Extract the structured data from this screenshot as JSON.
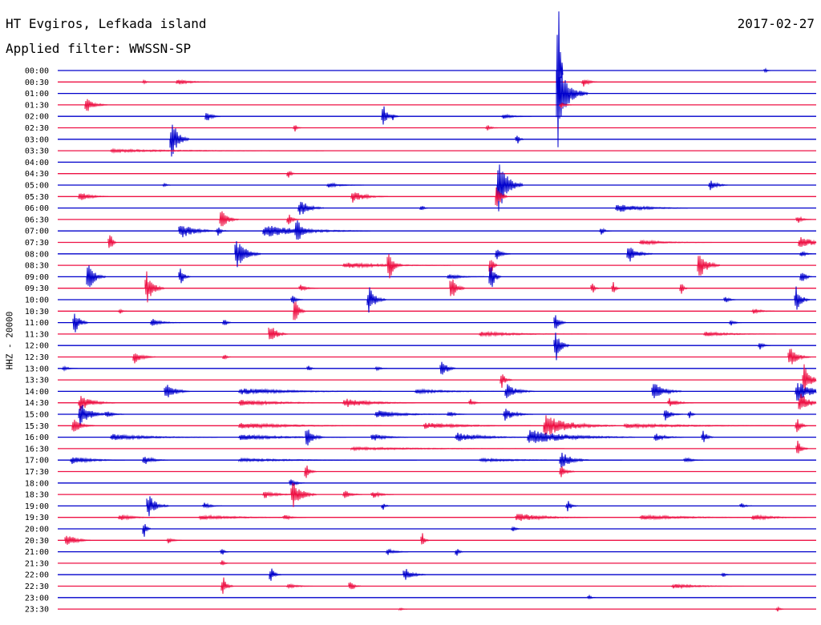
{
  "header": {
    "station": "HT Evgiros, Lefkada island",
    "date": "2017-02-27",
    "filter": "Applied filter: WWSSN-SP"
  },
  "colors": {
    "trace_a": "#0000cc",
    "trace_b": "#ee1144"
  },
  "chart_data": {
    "type": "line",
    "title": "HT Evgiros, Lefkada island",
    "ylabel": "HHZ - 20000",
    "row_labels": [
      "00:00",
      "00:30",
      "01:00",
      "01:30",
      "02:00",
      "02:30",
      "03:00",
      "03:30",
      "04:00",
      "04:30",
      "05:00",
      "05:30",
      "06:00",
      "06:30",
      "07:00",
      "07:30",
      "08:00",
      "08:30",
      "09:00",
      "09:30",
      "10:00",
      "10:30",
      "11:00",
      "11:30",
      "12:00",
      "12:30",
      "13:00",
      "13:30",
      "14:00",
      "14:30",
      "15:00",
      "15:30",
      "16:00",
      "16:30",
      "17:00",
      "17:30",
      "18:00",
      "18:30",
      "19:00",
      "19:30",
      "20:00",
      "20:30",
      "21:00",
      "21:30",
      "22:00",
      "22:30",
      "23:00",
      "23:30"
    ],
    "color_cycle": [
      "#0000cc",
      "#ee1144"
    ],
    "events": [
      {
        "row": 0,
        "x": 696,
        "amp": 120,
        "w": 3
      },
      {
        "row": 0,
        "x": 955,
        "amp": 3,
        "w": 3
      },
      {
        "row": 1,
        "x": 222,
        "amp": 4,
        "w": 18
      },
      {
        "row": 1,
        "x": 728,
        "amp": 7,
        "w": 8
      },
      {
        "row": 1,
        "x": 180,
        "amp": 3,
        "w": 3
      },
      {
        "row": 2,
        "x": 698,
        "amp": 38,
        "w": 16
      },
      {
        "row": 3,
        "x": 108,
        "amp": 10,
        "w": 12
      },
      {
        "row": 3,
        "x": 700,
        "amp": 5,
        "w": 6
      },
      {
        "row": 4,
        "x": 478,
        "amp": 16,
        "w": 6
      },
      {
        "row": 4,
        "x": 258,
        "amp": 8,
        "w": 8
      },
      {
        "row": 4,
        "x": 490,
        "amp": 5,
        "w": 4
      },
      {
        "row": 4,
        "x": 628,
        "amp": 3,
        "w": 16
      },
      {
        "row": 5,
        "x": 368,
        "amp": 5,
        "w": 4
      },
      {
        "row": 5,
        "x": 608,
        "amp": 4,
        "w": 6
      },
      {
        "row": 6,
        "x": 214,
        "amp": 28,
        "w": 10
      },
      {
        "row": 6,
        "x": 645,
        "amp": 8,
        "w": 4
      },
      {
        "row": 7,
        "x": 140,
        "amp": 2,
        "w": 120
      },
      {
        "row": 9,
        "x": 360,
        "amp": 6,
        "w": 4
      },
      {
        "row": 10,
        "x": 622,
        "amp": 35,
        "w": 14
      },
      {
        "row": 10,
        "x": 886,
        "amp": 8,
        "w": 10
      },
      {
        "row": 10,
        "x": 410,
        "amp": 3,
        "w": 20
      },
      {
        "row": 10,
        "x": 205,
        "amp": 3,
        "w": 4
      },
      {
        "row": 11,
        "x": 100,
        "amp": 7,
        "w": 16
      },
      {
        "row": 11,
        "x": 440,
        "amp": 8,
        "w": 20
      },
      {
        "row": 11,
        "x": 620,
        "amp": 20,
        "w": 6
      },
      {
        "row": 12,
        "x": 374,
        "amp": 12,
        "w": 14
      },
      {
        "row": 12,
        "x": 526,
        "amp": 4,
        "w": 4
      },
      {
        "row": 12,
        "x": 770,
        "amp": 6,
        "w": 40
      },
      {
        "row": 13,
        "x": 276,
        "amp": 15,
        "w": 10
      },
      {
        "row": 13,
        "x": 360,
        "amp": 8,
        "w": 6
      },
      {
        "row": 13,
        "x": 995,
        "amp": 5,
        "w": 8
      },
      {
        "row": 14,
        "x": 225,
        "amp": 10,
        "w": 24
      },
      {
        "row": 14,
        "x": 330,
        "amp": 8,
        "w": 60
      },
      {
        "row": 14,
        "x": 370,
        "amp": 18,
        "w": 10
      },
      {
        "row": 14,
        "x": 272,
        "amp": 6,
        "w": 6
      },
      {
        "row": 14,
        "x": 750,
        "amp": 5,
        "w": 6
      },
      {
        "row": 15,
        "x": 137,
        "amp": 16,
        "w": 4
      },
      {
        "row": 15,
        "x": 998,
        "amp": 10,
        "w": 18
      },
      {
        "row": 15,
        "x": 800,
        "amp": 3,
        "w": 40
      },
      {
        "row": 16,
        "x": 295,
        "amp": 22,
        "w": 14
      },
      {
        "row": 16,
        "x": 784,
        "amp": 12,
        "w": 14
      },
      {
        "row": 16,
        "x": 620,
        "amp": 8,
        "w": 8
      },
      {
        "row": 16,
        "x": 1000,
        "amp": 6,
        "w": 6
      },
      {
        "row": 17,
        "x": 485,
        "amp": 22,
        "w": 8
      },
      {
        "row": 17,
        "x": 872,
        "amp": 20,
        "w": 12
      },
      {
        "row": 17,
        "x": 430,
        "amp": 4,
        "w": 60
      },
      {
        "row": 17,
        "x": 612,
        "amp": 20,
        "w": 4
      },
      {
        "row": 18,
        "x": 110,
        "amp": 20,
        "w": 10
      },
      {
        "row": 18,
        "x": 225,
        "amp": 12,
        "w": 6
      },
      {
        "row": 18,
        "x": 612,
        "amp": 22,
        "w": 6
      },
      {
        "row": 18,
        "x": 1000,
        "amp": 10,
        "w": 6
      },
      {
        "row": 18,
        "x": 560,
        "amp": 4,
        "w": 20
      },
      {
        "row": 19,
        "x": 183,
        "amp": 22,
        "w": 10
      },
      {
        "row": 19,
        "x": 563,
        "amp": 18,
        "w": 8
      },
      {
        "row": 19,
        "x": 739,
        "amp": 8,
        "w": 4
      },
      {
        "row": 19,
        "x": 765,
        "amp": 8,
        "w": 4
      },
      {
        "row": 19,
        "x": 850,
        "amp": 8,
        "w": 4
      },
      {
        "row": 19,
        "x": 375,
        "amp": 5,
        "w": 10
      },
      {
        "row": 20,
        "x": 460,
        "amp": 18,
        "w": 10
      },
      {
        "row": 20,
        "x": 993,
        "amp": 18,
        "w": 8
      },
      {
        "row": 20,
        "x": 905,
        "amp": 5,
        "w": 6
      },
      {
        "row": 20,
        "x": 365,
        "amp": 6,
        "w": 6
      },
      {
        "row": 21,
        "x": 368,
        "amp": 20,
        "w": 6
      },
      {
        "row": 21,
        "x": 150,
        "amp": 4,
        "w": 4
      },
      {
        "row": 21,
        "x": 940,
        "amp": 4,
        "w": 12
      },
      {
        "row": 22,
        "x": 93,
        "amp": 16,
        "w": 8
      },
      {
        "row": 22,
        "x": 190,
        "amp": 5,
        "w": 16
      },
      {
        "row": 22,
        "x": 693,
        "amp": 12,
        "w": 6
      },
      {
        "row": 22,
        "x": 280,
        "amp": 6,
        "w": 4
      },
      {
        "row": 22,
        "x": 912,
        "amp": 4,
        "w": 6
      },
      {
        "row": 23,
        "x": 337,
        "amp": 14,
        "w": 10
      },
      {
        "row": 23,
        "x": 600,
        "amp": 3,
        "w": 60
      },
      {
        "row": 23,
        "x": 880,
        "amp": 3,
        "w": 40
      },
      {
        "row": 24,
        "x": 693,
        "amp": 22,
        "w": 8
      },
      {
        "row": 24,
        "x": 948,
        "amp": 5,
        "w": 6
      },
      {
        "row": 25,
        "x": 168,
        "amp": 8,
        "w": 12
      },
      {
        "row": 25,
        "x": 985,
        "amp": 14,
        "w": 12
      },
      {
        "row": 25,
        "x": 280,
        "amp": 4,
        "w": 4
      },
      {
        "row": 26,
        "x": 551,
        "amp": 14,
        "w": 8
      },
      {
        "row": 26,
        "x": 80,
        "amp": 3,
        "w": 8
      },
      {
        "row": 26,
        "x": 385,
        "amp": 4,
        "w": 4
      },
      {
        "row": 26,
        "x": 470,
        "amp": 3,
        "w": 6
      },
      {
        "row": 27,
        "x": 626,
        "amp": 10,
        "w": 6
      },
      {
        "row": 27,
        "x": 1003,
        "amp": 20,
        "w": 10
      },
      {
        "row": 28,
        "x": 207,
        "amp": 12,
        "w": 14
      },
      {
        "row": 28,
        "x": 632,
        "amp": 10,
        "w": 16
      },
      {
        "row": 28,
        "x": 815,
        "amp": 14,
        "w": 16
      },
      {
        "row": 28,
        "x": 994,
        "amp": 14,
        "w": 22
      },
      {
        "row": 28,
        "x": 300,
        "amp": 4,
        "w": 80
      },
      {
        "row": 28,
        "x": 520,
        "amp": 3,
        "w": 50
      },
      {
        "row": 29,
        "x": 100,
        "amp": 10,
        "w": 20
      },
      {
        "row": 29,
        "x": 430,
        "amp": 6,
        "w": 40
      },
      {
        "row": 29,
        "x": 998,
        "amp": 14,
        "w": 14
      },
      {
        "row": 29,
        "x": 835,
        "amp": 6,
        "w": 14
      },
      {
        "row": 29,
        "x": 300,
        "amp": 4,
        "w": 60
      },
      {
        "row": 29,
        "x": 587,
        "amp": 5,
        "w": 6
      },
      {
        "row": 30,
        "x": 100,
        "amp": 16,
        "w": 16
      },
      {
        "row": 30,
        "x": 630,
        "amp": 8,
        "w": 16
      },
      {
        "row": 30,
        "x": 470,
        "amp": 5,
        "w": 40
      },
      {
        "row": 30,
        "x": 830,
        "amp": 8,
        "w": 10
      },
      {
        "row": 30,
        "x": 133,
        "amp": 5,
        "w": 10
      },
      {
        "row": 30,
        "x": 860,
        "amp": 6,
        "w": 4
      },
      {
        "row": 30,
        "x": 560,
        "amp": 4,
        "w": 10
      },
      {
        "row": 31,
        "x": 92,
        "amp": 10,
        "w": 12
      },
      {
        "row": 31,
        "x": 680,
        "amp": 14,
        "w": 40
      },
      {
        "row": 31,
        "x": 300,
        "amp": 4,
        "w": 80
      },
      {
        "row": 31,
        "x": 530,
        "amp": 4,
        "w": 60
      },
      {
        "row": 31,
        "x": 994,
        "amp": 12,
        "w": 6
      },
      {
        "row": 31,
        "x": 780,
        "amp": 3,
        "w": 100
      },
      {
        "row": 32,
        "x": 383,
        "amp": 16,
        "w": 10
      },
      {
        "row": 32,
        "x": 660,
        "amp": 10,
        "w": 60
      },
      {
        "row": 32,
        "x": 570,
        "amp": 6,
        "w": 40
      },
      {
        "row": 32,
        "x": 877,
        "amp": 10,
        "w": 6
      },
      {
        "row": 32,
        "x": 140,
        "amp": 4,
        "w": 60
      },
      {
        "row": 32,
        "x": 300,
        "amp": 4,
        "w": 60
      },
      {
        "row": 32,
        "x": 465,
        "amp": 5,
        "w": 20
      },
      {
        "row": 32,
        "x": 818,
        "amp": 5,
        "w": 16
      },
      {
        "row": 33,
        "x": 995,
        "amp": 12,
        "w": 6
      },
      {
        "row": 33,
        "x": 440,
        "amp": 2,
        "w": 120
      },
      {
        "row": 34,
        "x": 700,
        "amp": 12,
        "w": 16
      },
      {
        "row": 34,
        "x": 90,
        "amp": 5,
        "w": 30
      },
      {
        "row": 34,
        "x": 180,
        "amp": 6,
        "w": 14
      },
      {
        "row": 34,
        "x": 855,
        "amp": 4,
        "w": 10
      },
      {
        "row": 34,
        "x": 300,
        "amp": 2,
        "w": 100
      },
      {
        "row": 34,
        "x": 600,
        "amp": 2,
        "w": 80
      },
      {
        "row": 35,
        "x": 382,
        "amp": 10,
        "w": 6
      },
      {
        "row": 35,
        "x": 700,
        "amp": 8,
        "w": 8
      },
      {
        "row": 36,
        "x": 363,
        "amp": 6,
        "w": 8
      },
      {
        "row": 37,
        "x": 365,
        "amp": 18,
        "w": 14
      },
      {
        "row": 37,
        "x": 430,
        "amp": 6,
        "w": 10
      },
      {
        "row": 37,
        "x": 465,
        "amp": 5,
        "w": 12
      },
      {
        "row": 37,
        "x": 330,
        "amp": 5,
        "w": 20
      },
      {
        "row": 38,
        "x": 185,
        "amp": 16,
        "w": 12
      },
      {
        "row": 38,
        "x": 708,
        "amp": 8,
        "w": 6
      },
      {
        "row": 38,
        "x": 478,
        "amp": 5,
        "w": 4
      },
      {
        "row": 38,
        "x": 255,
        "amp": 4,
        "w": 10
      },
      {
        "row": 38,
        "x": 925,
        "amp": 4,
        "w": 6
      },
      {
        "row": 39,
        "x": 645,
        "amp": 6,
        "w": 40
      },
      {
        "row": 39,
        "x": 150,
        "amp": 4,
        "w": 20
      },
      {
        "row": 39,
        "x": 355,
        "amp": 4,
        "w": 10
      },
      {
        "row": 39,
        "x": 940,
        "amp": 4,
        "w": 30
      },
      {
        "row": 39,
        "x": 250,
        "amp": 3,
        "w": 60
      },
      {
        "row": 39,
        "x": 800,
        "amp": 3,
        "w": 80
      },
      {
        "row": 40,
        "x": 640,
        "amp": 5,
        "w": 4
      },
      {
        "row": 40,
        "x": 180,
        "amp": 12,
        "w": 4
      },
      {
        "row": 41,
        "x": 83,
        "amp": 10,
        "w": 14
      },
      {
        "row": 41,
        "x": 527,
        "amp": 10,
        "w": 4
      },
      {
        "row": 41,
        "x": 210,
        "amp": 4,
        "w": 8
      },
      {
        "row": 42,
        "x": 570,
        "amp": 6,
        "w": 4
      },
      {
        "row": 42,
        "x": 484,
        "amp": 4,
        "w": 12
      },
      {
        "row": 42,
        "x": 277,
        "amp": 5,
        "w": 4
      },
      {
        "row": 43,
        "x": 277,
        "amp": 4,
        "w": 4
      },
      {
        "row": 44,
        "x": 505,
        "amp": 10,
        "w": 12
      },
      {
        "row": 44,
        "x": 338,
        "amp": 10,
        "w": 6
      },
      {
        "row": 44,
        "x": 902,
        "amp": 4,
        "w": 4
      },
      {
        "row": 45,
        "x": 278,
        "amp": 14,
        "w": 6
      },
      {
        "row": 45,
        "x": 437,
        "amp": 8,
        "w": 6
      },
      {
        "row": 45,
        "x": 840,
        "amp": 3,
        "w": 40
      },
      {
        "row": 45,
        "x": 360,
        "amp": 3,
        "w": 14
      },
      {
        "row": 46,
        "x": 735,
        "amp": 3,
        "w": 4
      },
      {
        "row": 47,
        "x": 970,
        "amp": 3,
        "w": 4
      },
      {
        "row": 47,
        "x": 500,
        "amp": 2,
        "w": 4
      }
    ]
  }
}
